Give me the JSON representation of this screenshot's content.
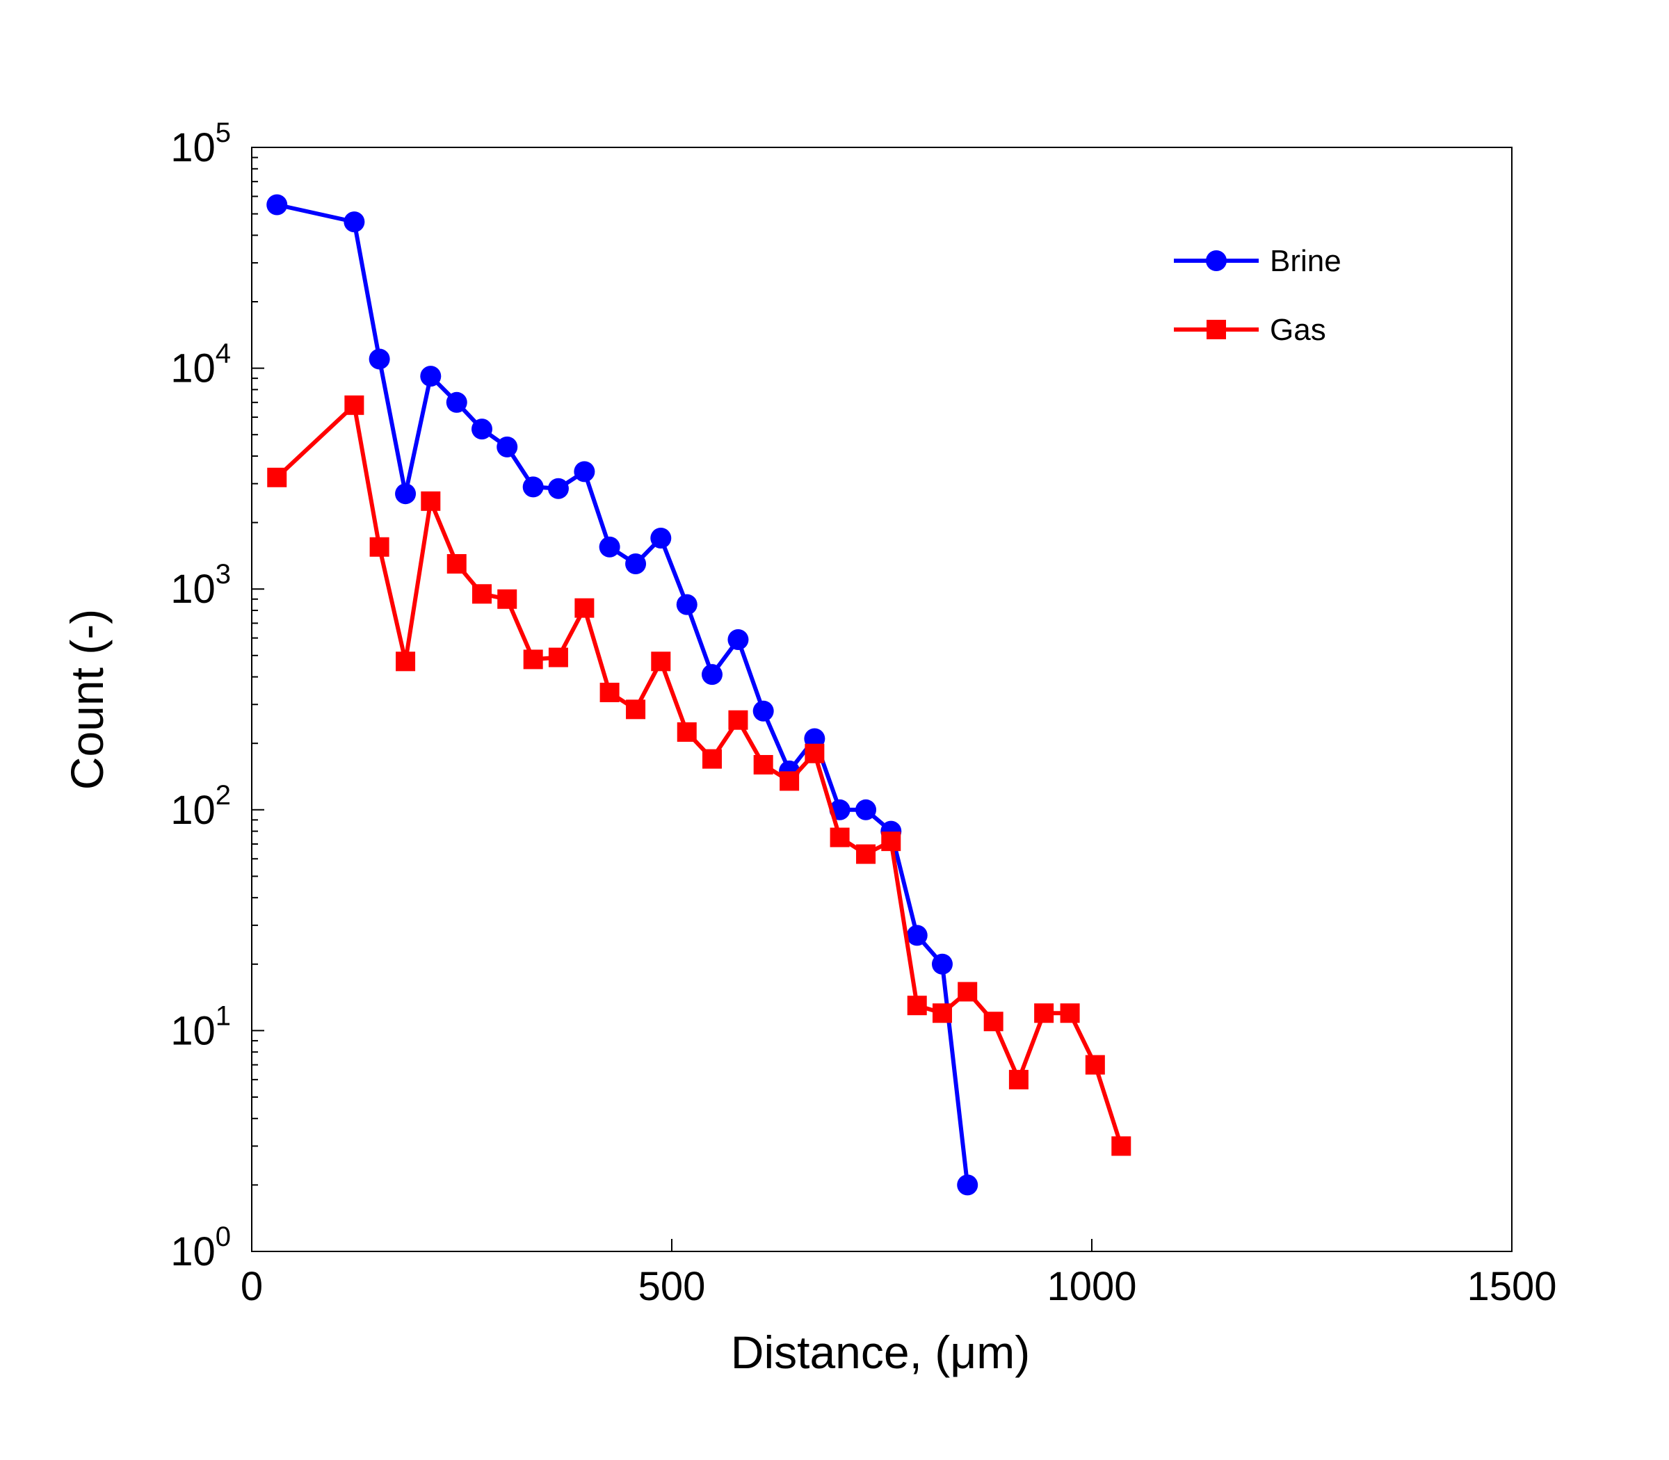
{
  "chart_data": {
    "type": "line",
    "title": "",
    "xlabel": "Distance, (μm)",
    "ylabel": "Count (-)",
    "xlim": [
      0,
      1500
    ],
    "ylim": [
      1,
      100000
    ],
    "yscale": "log",
    "grid": false,
    "legend_position": "top-right",
    "x_ticks": [
      0,
      500,
      1000,
      1500
    ],
    "y_ticks": [
      {
        "value": 1,
        "base": "10",
        "exp": "0"
      },
      {
        "value": 10,
        "base": "10",
        "exp": "1"
      },
      {
        "value": 100,
        "base": "10",
        "exp": "2"
      },
      {
        "value": 1000,
        "base": "10",
        "exp": "3"
      },
      {
        "value": 10000,
        "base": "10",
        "exp": "4"
      },
      {
        "value": 100000,
        "base": "10",
        "exp": "5"
      }
    ],
    "series": [
      {
        "name": "Brine",
        "color": "#0000ff",
        "marker": "circle",
        "x": [
          30,
          122,
          152,
          183,
          213,
          244,
          274,
          304,
          335,
          365,
          396,
          426,
          457,
          487,
          518,
          548,
          579,
          609,
          640,
          670,
          700,
          731,
          761,
          792,
          822,
          852
        ],
        "values": [
          55000,
          46000,
          11000,
          2700,
          9200,
          7000,
          5300,
          4400,
          2900,
          2850,
          3400,
          1550,
          1300,
          1700,
          850,
          410,
          590,
          280,
          150,
          210,
          100,
          100,
          80,
          27,
          20,
          2
        ]
      },
      {
        "name": "Gas",
        "color": "#ff0000",
        "marker": "square",
        "x": [
          30,
          122,
          152,
          183,
          213,
          244,
          274,
          304,
          335,
          365,
          396,
          426,
          457,
          487,
          518,
          548,
          579,
          609,
          640,
          670,
          700,
          731,
          761,
          792,
          822,
          852,
          883,
          913,
          943,
          974,
          1004,
          1035
        ],
        "values": [
          3200,
          6800,
          1550,
          470,
          2500,
          1300,
          950,
          900,
          480,
          490,
          820,
          340,
          285,
          470,
          225,
          170,
          255,
          160,
          135,
          180,
          75,
          63,
          72,
          13,
          12,
          15,
          11,
          6,
          12,
          12,
          7,
          3
        ]
      }
    ]
  }
}
